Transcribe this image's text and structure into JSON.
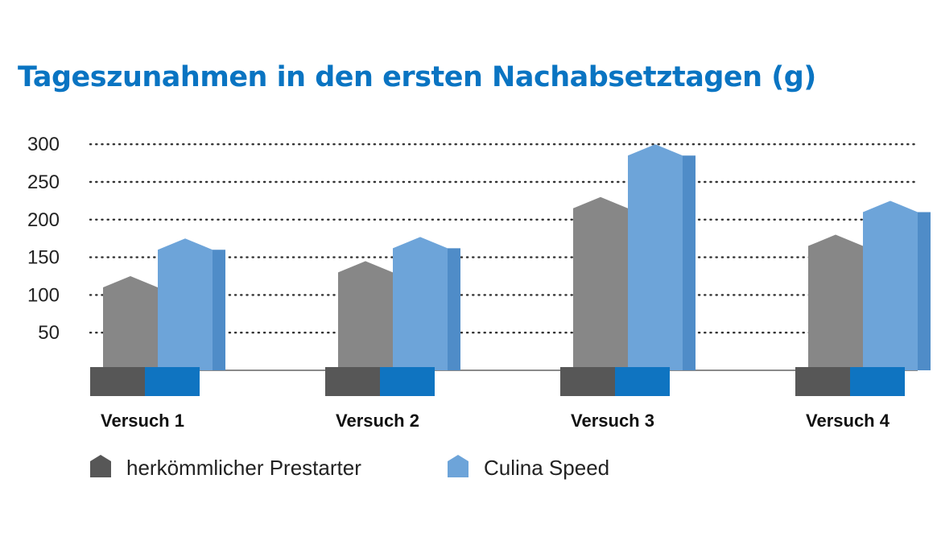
{
  "chart_data": {
    "type": "bar",
    "title": "Tageszunahmen in den ersten Nachabsetztagen (g)",
    "categories": [
      "Versuch 1",
      "Versuch 2",
      "Versuch 3",
      "Versuch 4"
    ],
    "series": [
      {
        "name": "herkömmlicher Prestarter",
        "values": [
          110,
          130,
          215,
          165
        ]
      },
      {
        "name": "Culina Speed",
        "values": [
          160,
          162,
          285,
          210
        ]
      }
    ],
    "y_ticks": [
      "50",
      "100",
      "150",
      "200",
      "250",
      "300"
    ],
    "ylim": [
      0,
      300
    ],
    "grid": true,
    "legend_position": "bottom-left"
  },
  "colors": {
    "title": "#0a74c2",
    "series_front": [
      "#878787",
      "#6da4d9"
    ],
    "series_base": [
      "#575757",
      "#0f74c1"
    ],
    "series_legend": [
      "#575757",
      "#6da4d9"
    ],
    "grid": "#333333"
  }
}
